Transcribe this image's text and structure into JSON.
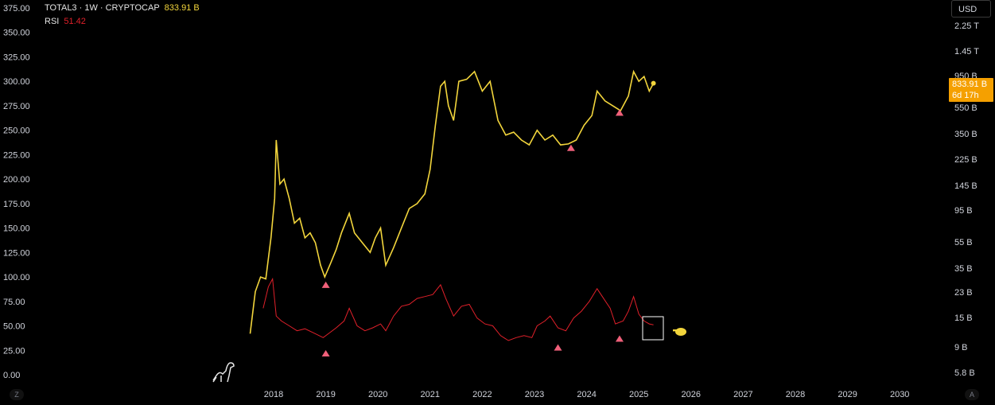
{
  "legend": {
    "main_label": "TOTAL3 · 1W · CRYPTOCAP",
    "main_value": "833.91 B",
    "indicator_label": "RSI",
    "indicator_value": "51.42"
  },
  "currency_button": "USD",
  "price_badge": {
    "price": "833.91 B",
    "countdown": "6d 17h"
  },
  "corner_buttons": {
    "left": "Z",
    "right": "A"
  },
  "colors": {
    "price_line": "#f2d53c",
    "rsi_line": "#e0202a",
    "triangle": "#f0607a",
    "badge": "#f5a000",
    "background": "#000000"
  },
  "chart_data": {
    "type": "line",
    "left_axis": {
      "ticks": [
        "375.00",
        "350.00",
        "325.00",
        "300.00",
        "275.00",
        "250.00",
        "225.00",
        "200.00",
        "175.00",
        "150.00",
        "125.00",
        "100.00",
        "75.00",
        "50.00",
        "25.00",
        "0.00"
      ],
      "range": [
        0,
        375
      ]
    },
    "right_axis": {
      "scale": "log",
      "ticks": [
        "2.25 T",
        "1.45 T",
        "950 B",
        "550 B",
        "350 B",
        "225 B",
        "145 B",
        "95 B",
        "55 B",
        "35 B",
        "23 B",
        "15 B",
        "9 B",
        "5.8 B"
      ]
    },
    "x_axis": {
      "ticks": [
        "2018",
        "2019",
        "2020",
        "2021",
        "2022",
        "2023",
        "2024",
        "2025",
        "2026",
        "2027",
        "2028",
        "2029",
        "2030"
      ]
    },
    "series": [
      {
        "name": "TOTAL3",
        "points": [
          [
            2017.55,
            42
          ],
          [
            2017.65,
            85
          ],
          [
            2017.75,
            100
          ],
          [
            2017.85,
            98
          ],
          [
            2017.95,
            140
          ],
          [
            2018.02,
            180
          ],
          [
            2018.05,
            240
          ],
          [
            2018.12,
            195
          ],
          [
            2018.2,
            200
          ],
          [
            2018.3,
            180
          ],
          [
            2018.4,
            155
          ],
          [
            2018.5,
            160
          ],
          [
            2018.6,
            140
          ],
          [
            2018.7,
            145
          ],
          [
            2018.8,
            135
          ],
          [
            2018.9,
            112
          ],
          [
            2018.98,
            100
          ],
          [
            2019.1,
            115
          ],
          [
            2019.2,
            128
          ],
          [
            2019.3,
            145
          ],
          [
            2019.45,
            165
          ],
          [
            2019.55,
            145
          ],
          [
            2019.7,
            135
          ],
          [
            2019.85,
            125
          ],
          [
            2019.95,
            140
          ],
          [
            2020.05,
            150
          ],
          [
            2020.15,
            112
          ],
          [
            2020.3,
            130
          ],
          [
            2020.45,
            150
          ],
          [
            2020.6,
            170
          ],
          [
            2020.75,
            175
          ],
          [
            2020.9,
            185
          ],
          [
            2021.0,
            210
          ],
          [
            2021.1,
            255
          ],
          [
            2021.2,
            295
          ],
          [
            2021.28,
            300
          ],
          [
            2021.35,
            275
          ],
          [
            2021.45,
            260
          ],
          [
            2021.55,
            300
          ],
          [
            2021.7,
            302
          ],
          [
            2021.85,
            310
          ],
          [
            2022.0,
            290
          ],
          [
            2022.15,
            300
          ],
          [
            2022.3,
            260
          ],
          [
            2022.45,
            245
          ],
          [
            2022.6,
            248
          ],
          [
            2022.75,
            240
          ],
          [
            2022.9,
            235
          ],
          [
            2023.05,
            250
          ],
          [
            2023.2,
            240
          ],
          [
            2023.35,
            245
          ],
          [
            2023.5,
            235
          ],
          [
            2023.65,
            236
          ],
          [
            2023.8,
            240
          ],
          [
            2023.95,
            255
          ],
          [
            2024.1,
            265
          ],
          [
            2024.2,
            290
          ],
          [
            2024.35,
            280
          ],
          [
            2024.5,
            275
          ],
          [
            2024.65,
            270
          ],
          [
            2024.8,
            285
          ],
          [
            2024.9,
            310
          ],
          [
            2025.0,
            300
          ],
          [
            2025.1,
            305
          ],
          [
            2025.2,
            290
          ],
          [
            2025.28,
            298
          ]
        ]
      },
      {
        "name": "RSI",
        "points": [
          [
            2017.8,
            68
          ],
          [
            2017.9,
            90
          ],
          [
            2017.98,
            98
          ],
          [
            2018.05,
            60
          ],
          [
            2018.15,
            55
          ],
          [
            2018.3,
            50
          ],
          [
            2018.45,
            45
          ],
          [
            2018.6,
            47
          ],
          [
            2018.8,
            42
          ],
          [
            2018.95,
            38
          ],
          [
            2019.05,
            42
          ],
          [
            2019.2,
            48
          ],
          [
            2019.35,
            55
          ],
          [
            2019.45,
            68
          ],
          [
            2019.6,
            50
          ],
          [
            2019.75,
            45
          ],
          [
            2019.9,
            48
          ],
          [
            2020.05,
            52
          ],
          [
            2020.15,
            45
          ],
          [
            2020.3,
            60
          ],
          [
            2020.45,
            70
          ],
          [
            2020.6,
            72
          ],
          [
            2020.75,
            78
          ],
          [
            2020.9,
            80
          ],
          [
            2021.05,
            82
          ],
          [
            2021.2,
            92
          ],
          [
            2021.3,
            78
          ],
          [
            2021.45,
            60
          ],
          [
            2021.6,
            70
          ],
          [
            2021.75,
            72
          ],
          [
            2021.9,
            58
          ],
          [
            2022.05,
            52
          ],
          [
            2022.2,
            50
          ],
          [
            2022.35,
            40
          ],
          [
            2022.5,
            35
          ],
          [
            2022.65,
            38
          ],
          [
            2022.8,
            40
          ],
          [
            2022.95,
            38
          ],
          [
            2023.05,
            50
          ],
          [
            2023.2,
            55
          ],
          [
            2023.3,
            60
          ],
          [
            2023.45,
            48
          ],
          [
            2023.6,
            45
          ],
          [
            2023.75,
            58
          ],
          [
            2023.9,
            65
          ],
          [
            2024.05,
            75
          ],
          [
            2024.2,
            88
          ],
          [
            2024.3,
            80
          ],
          [
            2024.45,
            68
          ],
          [
            2024.55,
            52
          ],
          [
            2024.7,
            55
          ],
          [
            2024.8,
            65
          ],
          [
            2024.9,
            80
          ],
          [
            2025.0,
            62
          ],
          [
            2025.1,
            55
          ],
          [
            2025.2,
            52
          ],
          [
            2025.28,
            51
          ]
        ]
      }
    ],
    "markers": [
      {
        "series": "TOTAL3",
        "x": 2019.0,
        "y": 92
      },
      {
        "series": "TOTAL3",
        "x": 2023.7,
        "y": 232
      },
      {
        "series": "TOTAL3",
        "x": 2024.63,
        "y": 268
      },
      {
        "series": "RSI",
        "x": 2019.0,
        "y": 22
      },
      {
        "series": "RSI",
        "x": 2023.45,
        "y": 28
      },
      {
        "series": "RSI",
        "x": 2024.63,
        "y": 37
      }
    ]
  }
}
